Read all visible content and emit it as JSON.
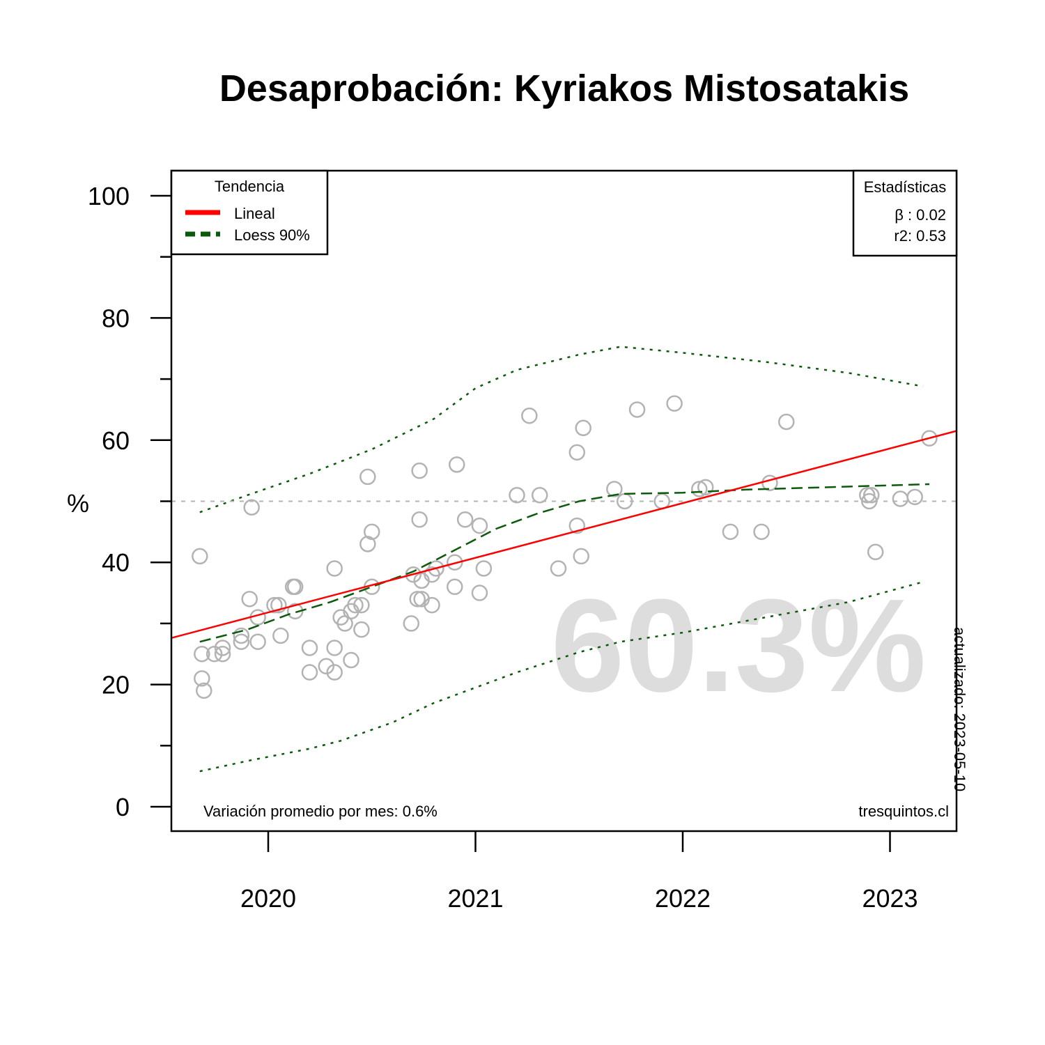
{
  "chart_data": {
    "type": "scatter",
    "title": "Desaprobación: Kyriakos Mistosatakis",
    "xlabel": "",
    "ylabel": "%",
    "ylim": [
      0,
      100
    ],
    "xlim": [
      2019.53,
      2023.32
    ],
    "x_ticks": [
      2020,
      2021,
      2022,
      2023
    ],
    "x_tick_labels": [
      "2020",
      "2021",
      "2022",
      "2023"
    ],
    "y_ticks": [
      0,
      20,
      40,
      60,
      80,
      100
    ],
    "y_tick_labels": [
      "0",
      "20",
      "40",
      "60",
      "80",
      "100"
    ],
    "y_minor_ticks": [
      10,
      30,
      50,
      70,
      90
    ],
    "reference_line": 50,
    "big_label": "60.3%",
    "variation_text": "Variación promedio por mes: 0.6%",
    "source": "tresquintos.cl",
    "updated": "actualizado: 2023-05-10",
    "legend": {
      "title": "Tendencia",
      "placement": "top-left",
      "items": [
        {
          "label": "Lineal",
          "color": "#ff0000",
          "style": "solid"
        },
        {
          "label": "Loess 90%",
          "color": "#0b5a0b",
          "style": "dashed"
        }
      ]
    },
    "stats": {
      "title": "Estadísticas",
      "placement": "top-right",
      "beta": "β : 0.02",
      "r2": "r2: 0.53"
    },
    "colors": {
      "points": "#b3b3b3",
      "linear": "#ff0000",
      "loess": "#0b5a0b",
      "reference": "#b3b3b3",
      "big_label": "#dddddd"
    },
    "points": [
      {
        "x": 2019.67,
        "y": 41
      },
      {
        "x": 2019.68,
        "y": 25
      },
      {
        "x": 2019.68,
        "y": 21
      },
      {
        "x": 2019.69,
        "y": 19
      },
      {
        "x": 2019.74,
        "y": 25
      },
      {
        "x": 2019.78,
        "y": 26
      },
      {
        "x": 2019.78,
        "y": 25
      },
      {
        "x": 2019.87,
        "y": 28
      },
      {
        "x": 2019.87,
        "y": 27
      },
      {
        "x": 2019.91,
        "y": 34
      },
      {
        "x": 2019.92,
        "y": 49
      },
      {
        "x": 2019.95,
        "y": 31
      },
      {
        "x": 2019.95,
        "y": 27
      },
      {
        "x": 2020.03,
        "y": 33
      },
      {
        "x": 2020.05,
        "y": 33
      },
      {
        "x": 2020.06,
        "y": 28
      },
      {
        "x": 2020.12,
        "y": 36
      },
      {
        "x": 2020.13,
        "y": 36
      },
      {
        "x": 2020.13,
        "y": 32
      },
      {
        "x": 2020.2,
        "y": 26
      },
      {
        "x": 2020.2,
        "y": 22
      },
      {
        "x": 2020.28,
        "y": 23
      },
      {
        "x": 2020.32,
        "y": 39
      },
      {
        "x": 2020.32,
        "y": 26
      },
      {
        "x": 2020.32,
        "y": 22
      },
      {
        "x": 2020.35,
        "y": 31
      },
      {
        "x": 2020.37,
        "y": 30
      },
      {
        "x": 2020.4,
        "y": 24
      },
      {
        "x": 2020.4,
        "y": 32
      },
      {
        "x": 2020.42,
        "y": 33
      },
      {
        "x": 2020.45,
        "y": 33
      },
      {
        "x": 2020.45,
        "y": 29
      },
      {
        "x": 2020.48,
        "y": 43
      },
      {
        "x": 2020.48,
        "y": 54
      },
      {
        "x": 2020.5,
        "y": 45
      },
      {
        "x": 2020.5,
        "y": 36
      },
      {
        "x": 2020.69,
        "y": 30
      },
      {
        "x": 2020.7,
        "y": 38
      },
      {
        "x": 2020.72,
        "y": 34
      },
      {
        "x": 2020.73,
        "y": 47
      },
      {
        "x": 2020.73,
        "y": 55
      },
      {
        "x": 2020.74,
        "y": 37
      },
      {
        "x": 2020.74,
        "y": 34
      },
      {
        "x": 2020.79,
        "y": 38
      },
      {
        "x": 2020.79,
        "y": 33
      },
      {
        "x": 2020.81,
        "y": 39
      },
      {
        "x": 2020.9,
        "y": 40
      },
      {
        "x": 2020.9,
        "y": 36
      },
      {
        "x": 2020.91,
        "y": 56
      },
      {
        "x": 2020.95,
        "y": 47
      },
      {
        "x": 2021.02,
        "y": 46
      },
      {
        "x": 2021.02,
        "y": 35
      },
      {
        "x": 2021.04,
        "y": 39
      },
      {
        "x": 2021.2,
        "y": 51
      },
      {
        "x": 2021.26,
        "y": 64
      },
      {
        "x": 2021.31,
        "y": 51
      },
      {
        "x": 2021.4,
        "y": 39
      },
      {
        "x": 2021.49,
        "y": 46
      },
      {
        "x": 2021.49,
        "y": 58
      },
      {
        "x": 2021.51,
        "y": 41
      },
      {
        "x": 2021.52,
        "y": 62
      },
      {
        "x": 2021.67,
        "y": 52
      },
      {
        "x": 2021.72,
        "y": 50
      },
      {
        "x": 2021.78,
        "y": 65
      },
      {
        "x": 2021.9,
        "y": 50
      },
      {
        "x": 2021.96,
        "y": 66
      },
      {
        "x": 2022.08,
        "y": 52
      },
      {
        "x": 2022.11,
        "y": 52.3
      },
      {
        "x": 2022.23,
        "y": 45
      },
      {
        "x": 2022.38,
        "y": 45
      },
      {
        "x": 2022.42,
        "y": 53
      },
      {
        "x": 2022.5,
        "y": 63
      },
      {
        "x": 2022.89,
        "y": 51
      },
      {
        "x": 2022.9,
        "y": 50
      },
      {
        "x": 2022.91,
        "y": 51
      },
      {
        "x": 2022.93,
        "y": 41.7
      },
      {
        "x": 2023.05,
        "y": 50.4
      },
      {
        "x": 2023.12,
        "y": 50.7
      },
      {
        "x": 2023.19,
        "y": 60.3
      }
    ],
    "linear": [
      {
        "x": 2019.53,
        "y": 27.6
      },
      {
        "x": 2023.32,
        "y": 61.5
      }
    ],
    "loess": [
      {
        "x": 2019.67,
        "y": 27
      },
      {
        "x": 2019.9,
        "y": 29
      },
      {
        "x": 2020.1,
        "y": 31.5
      },
      {
        "x": 2020.3,
        "y": 33.5
      },
      {
        "x": 2020.5,
        "y": 36
      },
      {
        "x": 2020.7,
        "y": 38.5
      },
      {
        "x": 2020.9,
        "y": 42
      },
      {
        "x": 2021.1,
        "y": 45.5
      },
      {
        "x": 2021.3,
        "y": 48
      },
      {
        "x": 2021.5,
        "y": 50
      },
      {
        "x": 2021.7,
        "y": 51.2
      },
      {
        "x": 2022.0,
        "y": 51.4
      },
      {
        "x": 2022.3,
        "y": 51.9
      },
      {
        "x": 2022.7,
        "y": 52.3
      },
      {
        "x": 2023.19,
        "y": 52.8
      }
    ],
    "loess_upper": [
      {
        "x": 2019.67,
        "y": 48.2
      },
      {
        "x": 2019.9,
        "y": 51
      },
      {
        "x": 2020.2,
        "y": 54.5
      },
      {
        "x": 2020.5,
        "y": 58.5
      },
      {
        "x": 2020.8,
        "y": 63.5
      },
      {
        "x": 2021.0,
        "y": 68.5
      },
      {
        "x": 2021.2,
        "y": 71.5
      },
      {
        "x": 2021.5,
        "y": 74
      },
      {
        "x": 2021.7,
        "y": 75.3
      },
      {
        "x": 2022.0,
        "y": 74.3
      },
      {
        "x": 2022.4,
        "y": 72.8
      },
      {
        "x": 2022.8,
        "y": 71
      },
      {
        "x": 2023.16,
        "y": 68.8
      }
    ],
    "loess_lower": [
      {
        "x": 2019.67,
        "y": 5.8
      },
      {
        "x": 2019.9,
        "y": 7.5
      },
      {
        "x": 2020.2,
        "y": 9.5
      },
      {
        "x": 2020.35,
        "y": 10.8
      },
      {
        "x": 2020.6,
        "y": 13.8
      },
      {
        "x": 2020.8,
        "y": 17
      },
      {
        "x": 2021.0,
        "y": 19.5
      },
      {
        "x": 2021.2,
        "y": 22
      },
      {
        "x": 2021.5,
        "y": 25.3
      },
      {
        "x": 2021.7,
        "y": 27
      },
      {
        "x": 2022.0,
        "y": 28.5
      },
      {
        "x": 2022.4,
        "y": 31
      },
      {
        "x": 2022.8,
        "y": 33.5
      },
      {
        "x": 2023.16,
        "y": 36.8
      }
    ]
  }
}
